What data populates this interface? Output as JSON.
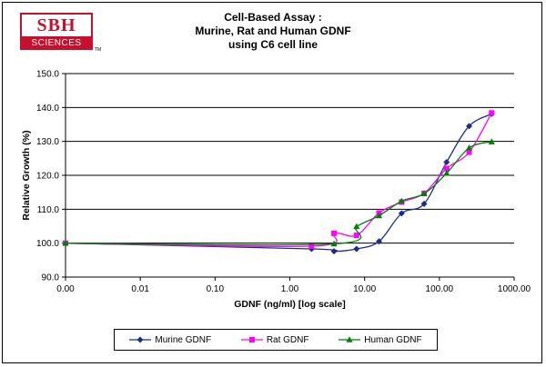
{
  "logo": {
    "brand": "SBH",
    "sub": "SCIENCES",
    "tm": "TM"
  },
  "chart_data": {
    "type": "line",
    "title": [
      "Cell-Based Assay :",
      "Murine, Rat and Human GDNF",
      "using C6 cell line"
    ],
    "xlabel": "GDNF (ng/ml) [log scale]",
    "ylabel": "Relative Growth (%)",
    "xscale": "log",
    "xlim": [
      0.001,
      1000
    ],
    "ylim": [
      90,
      150
    ],
    "xticks": [
      "0.00",
      "0.01",
      "0.10",
      "1.00",
      "10.00",
      "100.00",
      "1000.00"
    ],
    "yticks": [
      "90.0",
      "100.0",
      "110.0",
      "120.0",
      "130.0",
      "140.0",
      "150.0"
    ],
    "grid": "horizontal",
    "legend": "bottom",
    "series": [
      {
        "name": "Murine GDNF",
        "color": "#1f2a8a",
        "marker": "diamond",
        "x": [
          0.001,
          1.95,
          3.9,
          7.8,
          15.6,
          31.25,
          62.5,
          125,
          250,
          500
        ],
        "y": [
          100.0,
          98.3,
          97.6,
          98.3,
          100.5,
          108.8,
          111.6,
          123.9,
          134.5,
          138.1
        ]
      },
      {
        "name": "Rat GDNF",
        "color": "#ff00ff",
        "marker": "square",
        "x": [
          0.001,
          1.95,
          3.9,
          7.8,
          15.6,
          31.25,
          62.5,
          125,
          250,
          500
        ],
        "y": [
          100.0,
          99.1,
          102.9,
          102.3,
          108.9,
          112.1,
          114.7,
          122.0,
          126.8,
          138.4
        ]
      },
      {
        "name": "Human GDNF",
        "color": "#008000",
        "marker": "triangle",
        "x": [
          0.001,
          3.9,
          7.8,
          15.6,
          31.25,
          62.5,
          125,
          250,
          500
        ],
        "y": [
          100.0,
          99.8,
          104.9,
          108.1,
          112.4,
          114.6,
          120.6,
          128.1,
          129.9
        ]
      }
    ]
  }
}
